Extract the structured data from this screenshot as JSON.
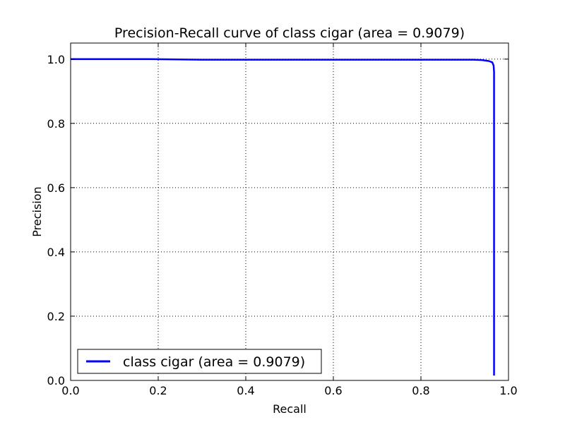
{
  "chart_data": {
    "type": "line",
    "title": "Precision-Recall curve of class cigar (area = 0.9079)",
    "xlabel": "Recall",
    "ylabel": "Precision",
    "xlim": [
      0.0,
      1.0
    ],
    "ylim": [
      0.0,
      1.05
    ],
    "x_ticks": [
      0.0,
      0.2,
      0.4,
      0.6,
      0.8,
      1.0
    ],
    "y_ticks": [
      0.0,
      0.2,
      0.4,
      0.6,
      0.8,
      1.0
    ],
    "x_tick_labels": [
      "0.0",
      "0.2",
      "0.4",
      "0.6",
      "0.8",
      "1.0"
    ],
    "y_tick_labels": [
      "0.0",
      "0.2",
      "0.4",
      "0.6",
      "0.8",
      "1.0"
    ],
    "grid": true,
    "legend_position": "bottom-left",
    "series": [
      {
        "name": "class cigar (area = 0.9079)",
        "color": "#0000ff",
        "x": [
          0.0,
          0.05,
          0.1,
          0.18,
          0.25,
          0.3,
          0.4,
          0.5,
          0.6,
          0.7,
          0.8,
          0.88,
          0.92,
          0.94,
          0.955,
          0.963,
          0.966,
          0.967,
          0.967,
          0.967,
          0.967,
          0.967,
          0.967,
          0.967,
          0.967
        ],
        "y": [
          1.0,
          1.0,
          1.0,
          1.0,
          0.999,
          0.998,
          0.998,
          0.998,
          0.998,
          0.998,
          0.998,
          0.998,
          0.998,
          0.997,
          0.994,
          0.99,
          0.98,
          0.96,
          0.8,
          0.6,
          0.4,
          0.2,
          0.05,
          0.02,
          0.015
        ]
      }
    ]
  }
}
